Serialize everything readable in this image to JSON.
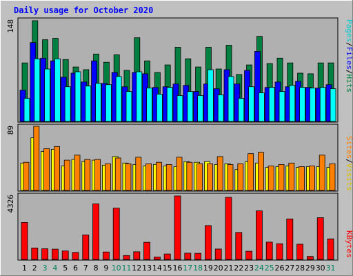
{
  "title": "Daily usage for October 2020",
  "colors": {
    "hits": "#008040",
    "files": "#0000ff",
    "pages": "#00ffff",
    "visits": "#ffff00",
    "sites": "#ff8000",
    "kbytes": "#ff0000",
    "weekday": "#000000",
    "weekend": "#00805c"
  },
  "chart_data": [
    {
      "type": "bar",
      "ymax_label": "148",
      "ymax": 148,
      "legend": [
        "Pages",
        "/",
        "Files",
        "/",
        "Hits"
      ],
      "categories": [
        "1",
        "2",
        "3",
        "4",
        "5",
        "6",
        "7",
        "8",
        "9",
        "10",
        "11",
        "12",
        "13",
        "14",
        "15",
        "16",
        "17",
        "18",
        "19",
        "20",
        "21",
        "22",
        "23",
        "24",
        "25",
        "26",
        "27",
        "28",
        "29",
        "30",
        "31"
      ],
      "weekend_days": [
        "3",
        "4",
        "10",
        "11",
        "17",
        "18",
        "24",
        "25",
        "31"
      ],
      "series": [
        {
          "name": "Hits",
          "values": [
            86,
            148,
            120,
            122,
            91,
            80,
            76,
            99,
            87,
            98,
            75,
            123,
            89,
            72,
            83,
            109,
            92,
            80,
            109,
            77,
            112,
            69,
            83,
            125,
            85,
            93,
            86,
            71,
            70,
            86,
            86
          ]
        },
        {
          "name": "Files",
          "values": [
            46,
            116,
            93,
            89,
            65,
            71,
            58,
            89,
            56,
            72,
            51,
            72,
            70,
            50,
            51,
            55,
            53,
            44,
            55,
            48,
            76,
            55,
            75,
            103,
            50,
            58,
            51,
            59,
            50,
            49,
            54
          ]
        },
        {
          "name": "Pages",
          "values": [
            34,
            92,
            77,
            92,
            51,
            73,
            52,
            56,
            54,
            66,
            44,
            73,
            49,
            40,
            50,
            38,
            44,
            38,
            76,
            39,
            66,
            34,
            51,
            42,
            50,
            44,
            53,
            50,
            49,
            50,
            48
          ]
        }
      ]
    },
    {
      "type": "bar",
      "ymax_label": "89",
      "ymax": 89,
      "legend": [
        "Sites",
        "/",
        "Visits"
      ],
      "categories": [
        "1",
        "2",
        "3",
        "4",
        "5",
        "6",
        "7",
        "8",
        "9",
        "10",
        "11",
        "12",
        "13",
        "14",
        "15",
        "16",
        "17",
        "18",
        "19",
        "20",
        "21",
        "22",
        "23",
        "24",
        "25",
        "26",
        "27",
        "28",
        "29",
        "30",
        "31"
      ],
      "series": [
        {
          "name": "Visits",
          "values": [
            38,
            73,
            54,
            57,
            34,
            43,
            40,
            42,
            35,
            47,
            38,
            36,
            34,
            36,
            34,
            33,
            40,
            39,
            40,
            36,
            37,
            29,
            40,
            38,
            32,
            33,
            34,
            32,
            33,
            33,
            32
          ]
        },
        {
          "name": "Sites",
          "values": [
            39,
            89,
            58,
            61,
            42,
            49,
            43,
            43,
            37,
            45,
            37,
            46,
            37,
            39,
            36,
            46,
            39,
            37,
            37,
            47,
            36,
            37,
            51,
            53,
            34,
            36,
            38,
            33,
            34,
            49,
            37
          ]
        }
      ]
    },
    {
      "type": "bar",
      "ymax_label": "4326",
      "ymax": 4326,
      "legend": [
        "KBytes"
      ],
      "categories": [
        "1",
        "2",
        "3",
        "4",
        "5",
        "6",
        "7",
        "8",
        "9",
        "10",
        "11",
        "12",
        "13",
        "14",
        "15",
        "16",
        "17",
        "18",
        "19",
        "20",
        "21",
        "22",
        "23",
        "24",
        "25",
        "26",
        "27",
        "28",
        "29",
        "30",
        "31"
      ],
      "series": [
        {
          "name": "KBytes",
          "values": [
            2520,
            780,
            730,
            700,
            580,
            480,
            1670,
            3790,
            510,
            3500,
            270,
            520,
            1170,
            170,
            370,
            4326,
            430,
            420,
            2310,
            710,
            4230,
            1840,
            560,
            3310,
            1180,
            1070,
            2760,
            1040,
            200,
            2850,
            1400
          ]
        }
      ]
    }
  ]
}
